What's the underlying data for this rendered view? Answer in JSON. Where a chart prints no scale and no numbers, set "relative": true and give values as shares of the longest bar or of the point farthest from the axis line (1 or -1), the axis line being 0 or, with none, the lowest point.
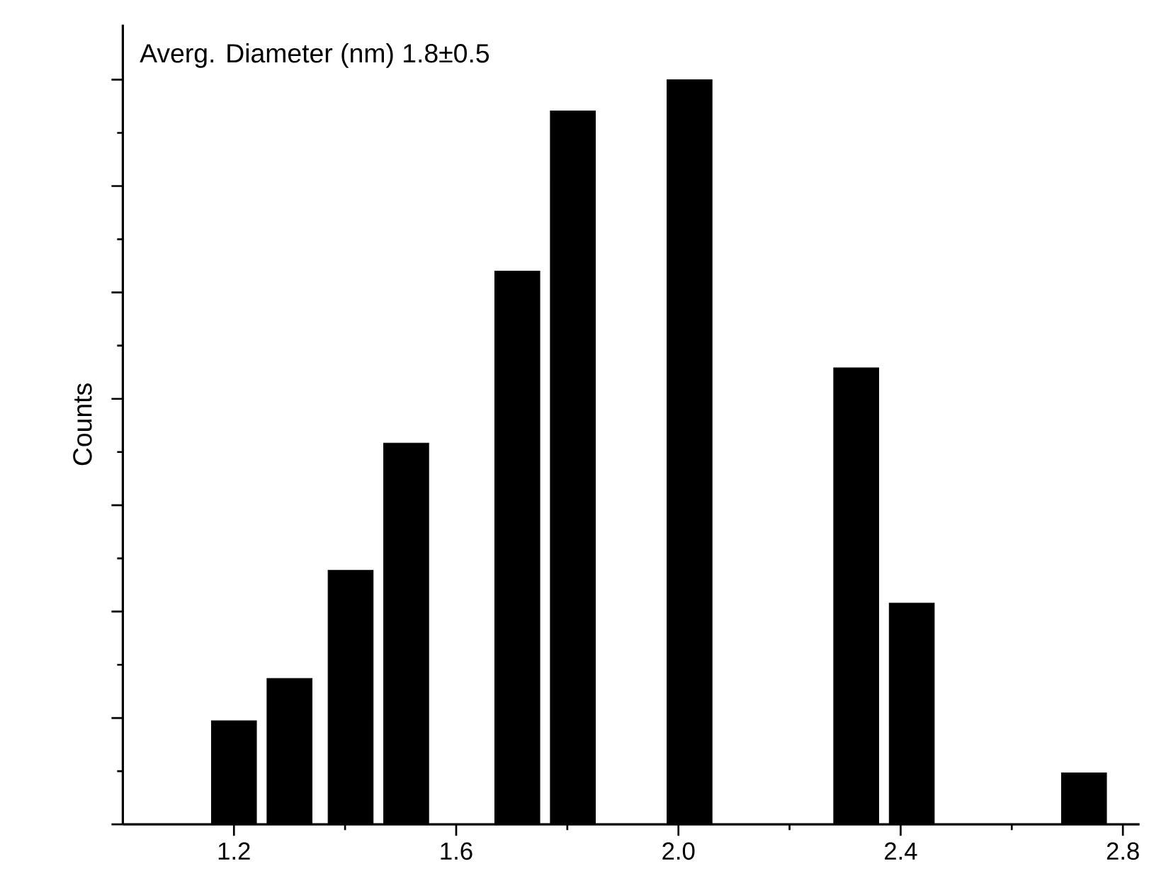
{
  "chart_data": {
    "type": "bar",
    "relative": true,
    "ylabel": "Counts",
    "annotations": [
      "Averg. Diameter (nm) 1.8±0.5"
    ],
    "x": [
      1.2,
      1.3,
      1.41,
      1.51,
      1.71,
      1.81,
      2.02,
      2.32,
      2.42,
      2.73
    ],
    "values": [
      0.139,
      0.196,
      0.341,
      0.512,
      0.743,
      0.958,
      1,
      0.613,
      0.297,
      0.069
    ],
    "color": "#000000",
    "xlim": [
      1.0,
      2.83
    ],
    "xticks": [
      {
        "value": 1.2,
        "label": "1.2"
      },
      {
        "value": 1.6,
        "label": "1.6"
      },
      {
        "value": 2.0,
        "label": "2.0"
      },
      {
        "value": 2.4,
        "label": "2.4"
      },
      {
        "value": 2.8,
        "label": "2.8"
      }
    ],
    "tick_labels": "x",
    "grid": false
  }
}
